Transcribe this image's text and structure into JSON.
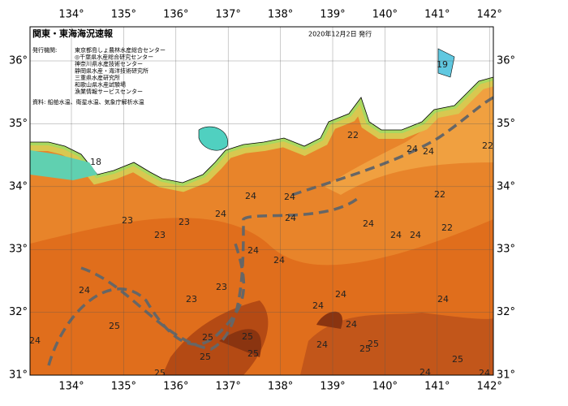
{
  "header": {
    "title": "関東・東海海況速報",
    "date": "2020年12月2日 発行"
  },
  "publishers": {
    "label": "発行機関:",
    "items": [
      "東京都島しょ農林水産総合センター",
      "◎千葉県水産総合研究センター",
      "神奈川県水産技術センター",
      "静岡県水産・海洋技術研究所",
      "三重県水産研究所",
      "和歌山県水産試験場",
      "漁業情報サービスセンター"
    ]
  },
  "source": "資料: 船舶水温、衛星水温、気象庁解析水温",
  "lon_ticks": [
    {
      "value": 134,
      "label": "134°"
    },
    {
      "value": 135,
      "label": "135°"
    },
    {
      "value": 136,
      "label": "136°"
    },
    {
      "value": 137,
      "label": "137°"
    },
    {
      "value": 138,
      "label": "138°"
    },
    {
      "value": 139,
      "label": "139°"
    },
    {
      "value": 140,
      "label": "140°"
    },
    {
      "value": 141,
      "label": "141°"
    },
    {
      "value": 142,
      "label": "142°"
    }
  ],
  "lat_ticks": [
    {
      "value": 31,
      "label": "31°"
    },
    {
      "value": 32,
      "label": "32°"
    },
    {
      "value": 33,
      "label": "33°"
    },
    {
      "value": 34,
      "label": "34°"
    },
    {
      "value": 35,
      "label": "35°"
    },
    {
      "value": 36,
      "label": "36°"
    }
  ],
  "temperature_labels": [
    19,
    18,
    22,
    24,
    24,
    22,
    24,
    24,
    22,
    24,
    24,
    24,
    22,
    23,
    23,
    24,
    24,
    23,
    24,
    24,
    24,
    23,
    23,
    24,
    24,
    24,
    25,
    24,
    24,
    25,
    25,
    24,
    25,
    25,
    25,
    25,
    25,
    25,
    24,
    24
  ]
}
